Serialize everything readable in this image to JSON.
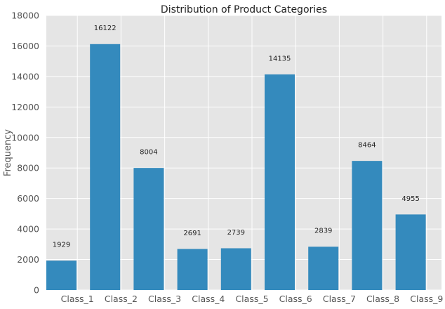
{
  "chart_data": {
    "type": "bar",
    "title": "Distribution of Product Categories",
    "xlabel": "",
    "ylabel": "Frequency",
    "categories": [
      "Class_1",
      "Class_2",
      "Class_3",
      "Class_4",
      "Class_5",
      "Class_6",
      "Class_7",
      "Class_8",
      "Class_9"
    ],
    "values": [
      1929,
      16122,
      8004,
      2691,
      2739,
      14135,
      2839,
      8464,
      4955
    ],
    "data_labels": [
      "1929",
      "16122",
      "8004",
      "2691",
      "2739",
      "14135",
      "2839",
      "8464",
      "4955"
    ],
    "ylim": [
      0,
      18000
    ],
    "yticks": [
      0,
      2000,
      4000,
      6000,
      8000,
      10000,
      12000,
      14000,
      16000,
      18000
    ],
    "ytick_labels": [
      "0",
      "2000",
      "4000",
      "6000",
      "8000",
      "10000",
      "12000",
      "14000",
      "16000",
      "18000"
    ],
    "grid": true,
    "bar_color": "#348abd",
    "plot_background": "#e5e5e5",
    "grid_color": "#ffffff"
  }
}
